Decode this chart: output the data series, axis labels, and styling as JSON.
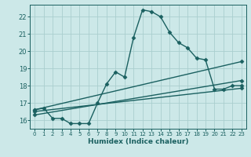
{
  "xlabel": "Humidex (Indice chaleur)",
  "bg_color": "#cce8e8",
  "grid_color": "#aacece",
  "line_color": "#1a6060",
  "xlim": [
    -0.5,
    23.5
  ],
  "ylim": [
    15.5,
    22.7
  ],
  "xticks": [
    0,
    1,
    2,
    3,
    4,
    5,
    6,
    7,
    8,
    9,
    10,
    11,
    12,
    13,
    14,
    15,
    16,
    17,
    18,
    19,
    20,
    21,
    22,
    23
  ],
  "yticks": [
    16,
    17,
    18,
    19,
    20,
    21,
    22
  ],
  "main_series_x": [
    0,
    1,
    2,
    3,
    4,
    5,
    6,
    7,
    8,
    9,
    10,
    11,
    12,
    13,
    14,
    15,
    16,
    17,
    18,
    19,
    20,
    21,
    22,
    23
  ],
  "main_series_y": [
    16.6,
    16.7,
    16.1,
    16.1,
    15.8,
    15.8,
    15.8,
    17.0,
    18.1,
    18.8,
    18.5,
    20.8,
    22.4,
    22.3,
    22.0,
    21.1,
    20.5,
    20.2,
    19.6,
    19.5,
    17.8,
    17.8,
    18.0,
    18.0
  ],
  "line2_x": [
    0,
    23
  ],
  "line2_y": [
    16.6,
    19.4
  ],
  "line3_x": [
    0,
    23
  ],
  "line3_y": [
    16.3,
    18.3
  ],
  "line4_x": [
    0,
    23
  ],
  "line4_y": [
    16.5,
    17.85
  ],
  "marker": "D",
  "markersize": 2.5,
  "linewidth": 1.0
}
